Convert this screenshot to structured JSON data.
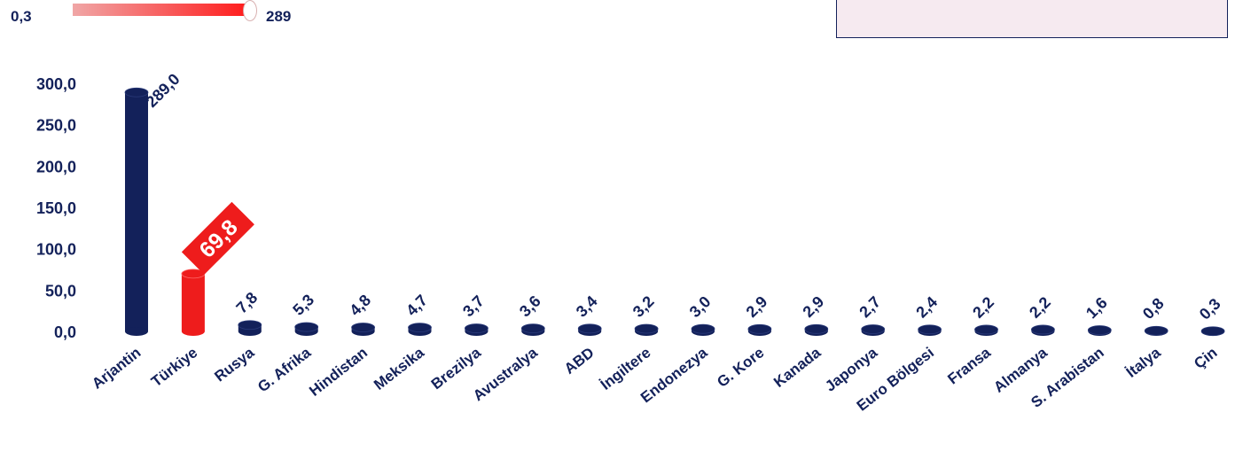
{
  "legend": {
    "min_label": "0,3",
    "max_label": "289"
  },
  "colors": {
    "navy": "#13215a",
    "red": "#ee1c1c",
    "highlight": "#ee1c1c"
  },
  "chart_data": {
    "type": "bar",
    "categories": [
      "Arjantin",
      "Türkiye",
      "Rusya",
      "G. Afrika",
      "Hindistan",
      "Meksika",
      "Brezilya",
      "Avustralya",
      "ABD",
      "İngiltere",
      "Endonezya",
      "G. Kore",
      "Kanada",
      "Japonya",
      "Euro Bölgesi",
      "Fransa",
      "Almanya",
      "S. Arabistan",
      "İtalya",
      "Çin"
    ],
    "values": [
      289.0,
      69.8,
      7.8,
      5.3,
      4.8,
      4.7,
      3.7,
      3.6,
      3.4,
      3.2,
      3.0,
      2.9,
      2.9,
      2.7,
      2.4,
      2.2,
      2.2,
      1.6,
      0.8,
      0.3
    ],
    "value_labels": [
      "289,0",
      "69,8",
      "7,8",
      "5,3",
      "4,8",
      "4,7",
      "3,7",
      "3,6",
      "3,4",
      "3,2",
      "3,0",
      "2,9",
      "2,9",
      "2,7",
      "2,4",
      "2,2",
      "2,2",
      "1,6",
      "0,8",
      "0,3"
    ],
    "highlight_category": "Türkiye",
    "yticks": [
      "0,0",
      "50,0",
      "100,0",
      "150,0",
      "200,0",
      "250,0",
      "300,0"
    ],
    "ylim": [
      0,
      300
    ],
    "grid": false,
    "title": "",
    "xlabel": "",
    "ylabel": ""
  }
}
